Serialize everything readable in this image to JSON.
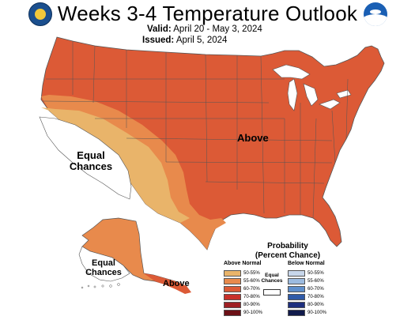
{
  "header": {
    "title": "Weeks 3-4 Temperature Outlook",
    "valid_label": "Valid:",
    "valid_value": "April 20 - May 3, 2024",
    "issued_label": "Issued:",
    "issued_value": "April 5, 2024"
  },
  "map_labels": {
    "above_main": "Above",
    "equal_west_line1": "Equal",
    "equal_west_line2": "Chances",
    "equal_alaska_line1": "Equal",
    "equal_alaska_line2": "Chances",
    "above_alaska": "Above"
  },
  "legend": {
    "title_line1": "Probability",
    "title_line2": "(Percent Chance)",
    "above_header": "Above Normal",
    "below_header": "Below Normal",
    "equal_line1": "Equal",
    "equal_line2": "Chances",
    "above": [
      {
        "label": "50-55%",
        "color": "#e9b46a"
      },
      {
        "label": "55-60%",
        "color": "#e88a4c"
      },
      {
        "label": "60-70%",
        "color": "#dc5a36"
      },
      {
        "label": "70-80%",
        "color": "#c8302a"
      },
      {
        "label": "80-90%",
        "color": "#9e1f23"
      },
      {
        "label": "90-100%",
        "color": "#6b1016"
      }
    ],
    "below": [
      {
        "label": "50-55%",
        "color": "#c7d6ea"
      },
      {
        "label": "55-60%",
        "color": "#9cbbe0"
      },
      {
        "label": "60-70%",
        "color": "#5f8fcc"
      },
      {
        "label": "70-80%",
        "color": "#2f5aa8"
      },
      {
        "label": "80-90%",
        "color": "#1e2f7e"
      },
      {
        "label": "90-100%",
        "color": "#111b4c"
      }
    ]
  },
  "colors": {
    "above_50_55": "#e9b46a",
    "above_55_60": "#e88a4c",
    "above_60_70": "#dc5a36",
    "border": "#444444"
  },
  "icons": {
    "left_logo": "doc-seal-icon",
    "right_logo": "noaa-logo-icon"
  }
}
